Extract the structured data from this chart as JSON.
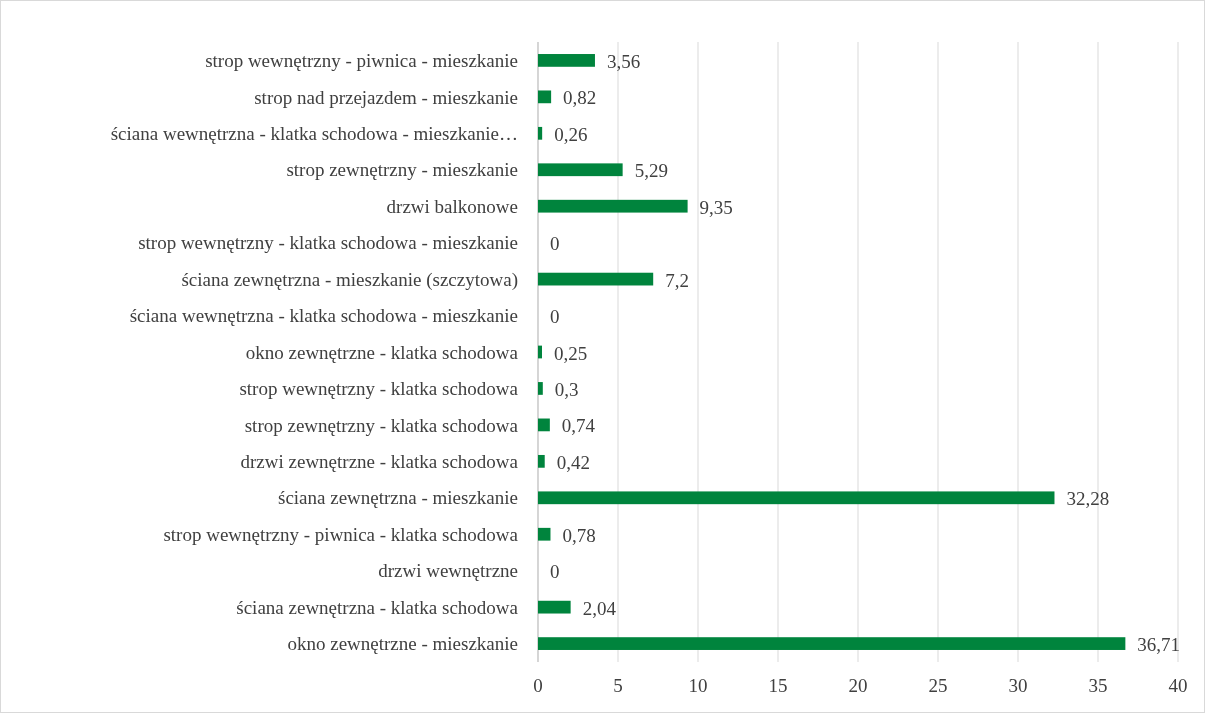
{
  "chart_data": {
    "type": "bar",
    "orientation": "horizontal",
    "categories": [
      "strop wewnętrzny - piwnica - mieszkanie",
      "strop nad przejazdem - mieszkanie",
      "ściana wewnętrzna - klatka schodowa - mieszkanie…",
      "strop zewnętrzny - mieszkanie",
      "drzwi balkonowe",
      "strop wewnętrzny - klatka schodowa - mieszkanie",
      "ściana zewnętrzna - mieszkanie (szczytowa)",
      "ściana wewnętrzna - klatka schodowa - mieszkanie",
      "okno zewnętrzne - klatka schodowa",
      "strop wewnętrzny - klatka schodowa",
      "strop zewnętrzny - klatka schodowa",
      "drzwi zewnętrzne - klatka schodowa",
      "ściana zewnętrzna - mieszkanie",
      "strop wewnętrzny - piwnica - klatka schodowa",
      "drzwi wewnętrzne",
      "ściana zewnętrzna - klatka schodowa",
      "okno zewnętrzne - mieszkanie"
    ],
    "values": [
      3.56,
      0.82,
      0.26,
      5.29,
      9.35,
      0,
      7.2,
      0,
      0.25,
      0.3,
      0.74,
      0.42,
      32.28,
      0.78,
      0,
      2.04,
      36.71
    ],
    "value_labels": [
      "3,56",
      "0,82",
      "0,26",
      "5,29",
      "9,35",
      "0",
      "7,2",
      "0",
      "0,25",
      "0,3",
      "0,74",
      "0,42",
      "32,28",
      "0,78",
      "0",
      "2,04",
      "36,71"
    ],
    "color": "#00843d",
    "xlim": [
      0,
      40
    ],
    "xticks": [
      0,
      5,
      10,
      15,
      20,
      25,
      30,
      35,
      40
    ],
    "grid": "x"
  }
}
